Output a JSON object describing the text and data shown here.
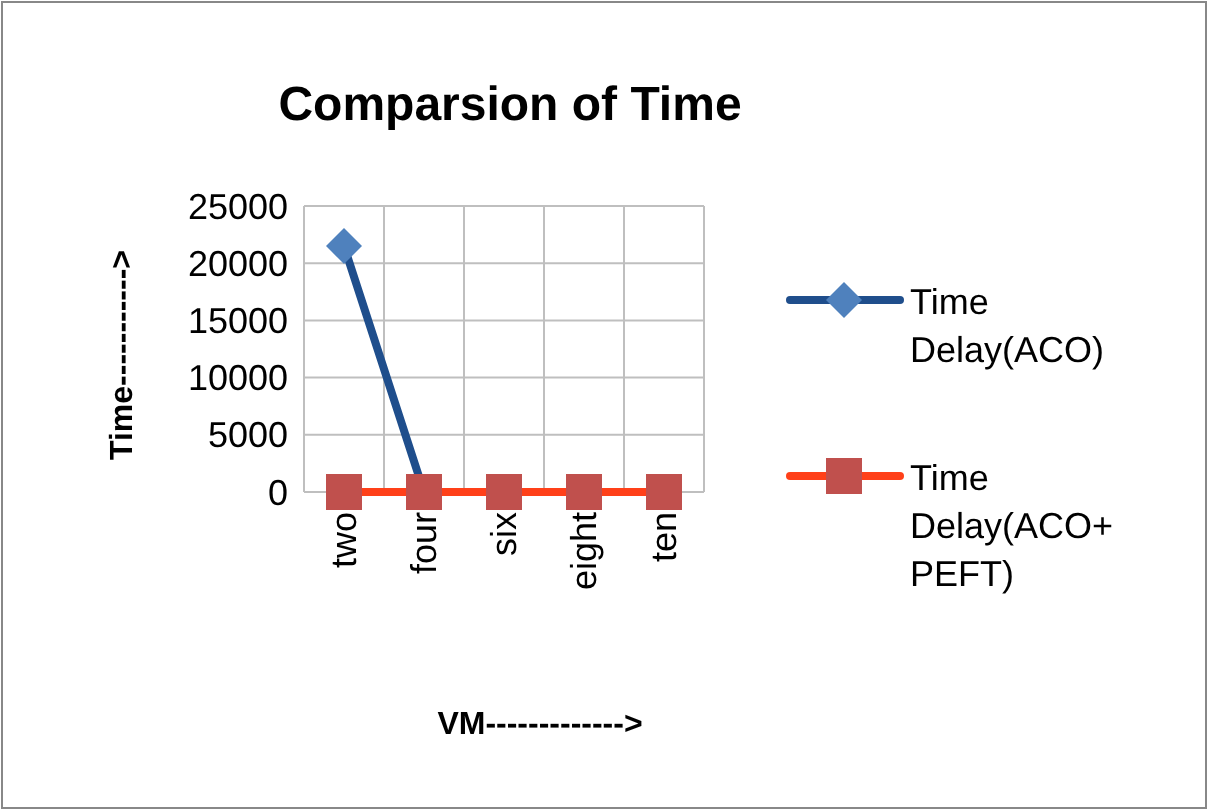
{
  "chart_data": {
    "type": "line",
    "title": "Comparsion of  Time",
    "xlabel": "VM------------->",
    "ylabel": "Time----------->",
    "categories": [
      "two",
      "four",
      "six",
      "eight",
      "ten"
    ],
    "series": [
      {
        "name": "Time Delay(ACO)",
        "color": "#1f4e8c",
        "marker": "diamond",
        "values": [
          21500,
          0,
          null,
          null,
          null
        ]
      },
      {
        "name": "Time Delay(ACO+PEFT)",
        "color": "#ff4019",
        "marker": "square",
        "values": [
          0,
          0,
          0,
          0,
          0
        ]
      }
    ],
    "ylim": [
      0,
      25000
    ],
    "yticks": [
      0,
      5000,
      10000,
      15000,
      20000,
      25000
    ],
    "grid": true,
    "legend": "right"
  }
}
